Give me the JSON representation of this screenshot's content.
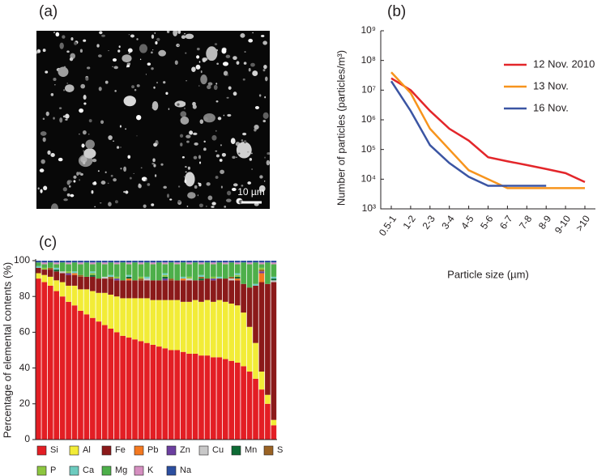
{
  "image_panel": {
    "panel_label": "(a)",
    "scale_bar": "10 µm"
  },
  "chart_data": [
    {
      "type": "line",
      "panel_label": "(b)",
      "x_label": "Particle size (µm)",
      "y_label": "Number of particles (particles/m³)",
      "categories": [
        "0.5-1",
        "1-2",
        "2-3",
        "3-4",
        "4-5",
        "5-6",
        "6-7",
        "7-8",
        "8-9",
        "9-10",
        ">10"
      ],
      "log_y": true,
      "ylim": [
        1000,
        1000000000
      ],
      "yticks": [
        {
          "value": 1000,
          "label": "10³"
        },
        {
          "value": 10000,
          "label": "10⁴"
        },
        {
          "value": 100000,
          "label": "10⁵"
        },
        {
          "value": 1000000,
          "label": "10⁶"
        },
        {
          "value": 10000000,
          "label": "10⁷"
        },
        {
          "value": 100000000,
          "label": "10⁸"
        },
        {
          "value": 1000000000,
          "label": "10⁹"
        }
      ],
      "legend": "upper right",
      "series": [
        {
          "name": "12 Nov. 2010",
          "color": "#e3262a",
          "values": [
            25000000,
            10000000,
            2000000,
            500000,
            200000,
            55000,
            40000,
            30000,
            22000,
            16000,
            8000
          ]
        },
        {
          "name": "13 Nov.",
          "color": "#f7941d",
          "values": [
            40000000,
            8000000,
            500000,
            100000,
            20000,
            10000,
            5000,
            5000,
            5000,
            5000,
            5000
          ]
        },
        {
          "name": "16 Nov.",
          "color": "#3b55a3",
          "values": [
            20000000,
            2000000,
            140000,
            35000,
            12000,
            6000,
            6000,
            6000,
            6000,
            null,
            null
          ]
        }
      ]
    },
    {
      "type": "bar",
      "stacked": true,
      "panel_label": "(c)",
      "y_label": "Percentage of elemental contents (%)",
      "categories": [
        null,
        null,
        null,
        null,
        null,
        null,
        null,
        null,
        null,
        null,
        null,
        null,
        null,
        null,
        null,
        null,
        null,
        null,
        null,
        null,
        null,
        null,
        null,
        null,
        null,
        null,
        null,
        null,
        null,
        null,
        null,
        null,
        null,
        null,
        null,
        null,
        null,
        null,
        null,
        null
      ],
      "ylim": [
        0,
        100
      ],
      "yticks": [
        0,
        20,
        40,
        60,
        80,
        100
      ],
      "legend": "bottom",
      "series": [
        {
          "name": "Si",
          "color": "#e31e24",
          "values": [
            90,
            88,
            86,
            83,
            80,
            77,
            75,
            72,
            70,
            68,
            66,
            64,
            62,
            60,
            58,
            57,
            56,
            55,
            54,
            53,
            52,
            51,
            50,
            50,
            49,
            48,
            48,
            47,
            47,
            46,
            46,
            45,
            44,
            43,
            41,
            38,
            34,
            28,
            20,
            8
          ]
        },
        {
          "name": "Al",
          "color": "#f2ec37",
          "values": [
            3,
            4,
            5,
            6,
            8,
            9,
            11,
            12,
            14,
            15,
            16,
            18,
            19,
            20,
            21,
            22,
            23,
            24,
            25,
            25,
            26,
            27,
            28,
            28,
            28,
            29,
            30,
            30,
            31,
            31,
            32,
            32,
            32,
            32,
            30,
            25,
            20,
            10,
            5,
            3
          ]
        },
        {
          "name": "Fe",
          "color": "#8b1a1a",
          "values": [
            3,
            3,
            4,
            5,
            5,
            6,
            6,
            7,
            7,
            8,
            8,
            8,
            9,
            9,
            10,
            10,
            10,
            10,
            10,
            11,
            11,
            11,
            11,
            11,
            12,
            12,
            11,
            12,
            12,
            12,
            12,
            13,
            13,
            14,
            16,
            22,
            32,
            50,
            62,
            77
          ]
        },
        {
          "name": "Pb",
          "color": "#f47920",
          "values": [
            0,
            0,
            0,
            0,
            0,
            0,
            1,
            0,
            0,
            0,
            0,
            0,
            0,
            0,
            0,
            1,
            0,
            0,
            0,
            0,
            0,
            0,
            0,
            0,
            1,
            0,
            0,
            0,
            0,
            0,
            0,
            0,
            0,
            1,
            0,
            0,
            0,
            5,
            0,
            0
          ]
        },
        {
          "name": "Zn",
          "color": "#6b3fa0",
          "values": [
            0,
            0,
            0,
            0,
            0,
            1,
            0,
            0,
            0,
            0,
            0,
            0,
            0,
            1,
            0,
            0,
            0,
            0,
            0,
            0,
            0,
            1,
            0,
            0,
            0,
            0,
            0,
            0,
            0,
            1,
            0,
            0,
            0,
            0,
            0,
            0,
            0,
            1,
            0,
            0
          ]
        },
        {
          "name": "Cu",
          "color": "#c8c8c8",
          "values": [
            0,
            0,
            0,
            0,
            1,
            0,
            0,
            0,
            0,
            0,
            0,
            1,
            0,
            0,
            0,
            0,
            0,
            0,
            1,
            0,
            0,
            0,
            0,
            0,
            0,
            1,
            0,
            0,
            0,
            0,
            0,
            0,
            1,
            0,
            0,
            0,
            0,
            0,
            0,
            1
          ]
        },
        {
          "name": "Mn",
          "color": "#0d6b35",
          "values": [
            0,
            0,
            0,
            1,
            0,
            0,
            0,
            0,
            0,
            1,
            0,
            0,
            0,
            0,
            0,
            1,
            0,
            0,
            0,
            0,
            0,
            1,
            0,
            0,
            0,
            0,
            0,
            1,
            0,
            0,
            0,
            0,
            0,
            1,
            0,
            0,
            0,
            0,
            0,
            1
          ]
        },
        {
          "name": "S",
          "color": "#9a6324",
          "values": [
            0,
            0,
            1,
            0,
            0,
            0,
            0,
            1,
            0,
            0,
            0,
            0,
            1,
            0,
            0,
            0,
            0,
            1,
            0,
            0,
            0,
            0,
            1,
            0,
            0,
            0,
            0,
            1,
            0,
            0,
            0,
            0,
            1,
            0,
            0,
            0,
            0,
            1,
            0,
            0
          ]
        },
        {
          "name": "P",
          "color": "#8dc63f",
          "values": [
            0,
            1,
            0,
            0,
            0,
            1,
            0,
            0,
            0,
            1,
            0,
            0,
            0,
            1,
            0,
            0,
            0,
            1,
            0,
            0,
            0,
            1,
            0,
            0,
            0,
            1,
            0,
            0,
            0,
            1,
            0,
            0,
            0,
            1,
            0,
            0,
            0,
            1,
            0,
            0
          ]
        },
        {
          "name": "Ca",
          "color": "#6ccbbf",
          "values": [
            1,
            0,
            0,
            1,
            0,
            0,
            1,
            0,
            0,
            1,
            0,
            0,
            1,
            0,
            0,
            1,
            0,
            0,
            1,
            0,
            0,
            1,
            0,
            0,
            1,
            0,
            0,
            1,
            0,
            0,
            1,
            0,
            0,
            1,
            0,
            0,
            1,
            0,
            0,
            1
          ]
        },
        {
          "name": "Mg",
          "color": "#4daf4a",
          "values": [
            2,
            2,
            3,
            2,
            5,
            4,
            5,
            6,
            8,
            4,
            9,
            7,
            7,
            7,
            10,
            6,
            10,
            7,
            8,
            9,
            10,
            5,
            9,
            9,
            8,
            7,
            10,
            6,
            9,
            7,
            8,
            8,
            8,
            5,
            12,
            13,
            12,
            2,
            12,
            7
          ]
        },
        {
          "name": "K",
          "color": "#d58fc0",
          "values": [
            0,
            1,
            0,
            1,
            0,
            1,
            0,
            1,
            0,
            1,
            0,
            1,
            0,
            1,
            0,
            1,
            0,
            1,
            0,
            1,
            0,
            1,
            0,
            1,
            0,
            1,
            0,
            1,
            0,
            1,
            0,
            1,
            0,
            1,
            0,
            1,
            0,
            1,
            0,
            1
          ]
        },
        {
          "name": "Na",
          "color": "#2c4fa0",
          "values": [
            1,
            1,
            1,
            1,
            1,
            1,
            1,
            1,
            1,
            1,
            1,
            1,
            1,
            1,
            1,
            1,
            1,
            1,
            1,
            1,
            1,
            1,
            1,
            1,
            1,
            1,
            1,
            1,
            1,
            1,
            1,
            1,
            1,
            1,
            1,
            1,
            1,
            1,
            1,
            1
          ]
        }
      ]
    }
  ]
}
